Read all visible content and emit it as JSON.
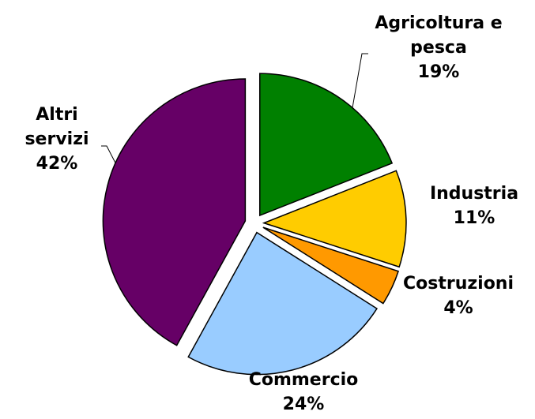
{
  "chart_data": {
    "type": "pie",
    "categories": [
      "Agricoltura e pesca",
      "Industria",
      "Costruzioni",
      "Commercio",
      "Altri servizi"
    ],
    "values": [
      19,
      11,
      4,
      24,
      42
    ],
    "value_labels": [
      "19%",
      "11%",
      "4%",
      "24%",
      "42%"
    ],
    "colors": [
      "#008000",
      "#ffcc00",
      "#ff9900",
      "#99ccff",
      "#660066"
    ]
  }
}
